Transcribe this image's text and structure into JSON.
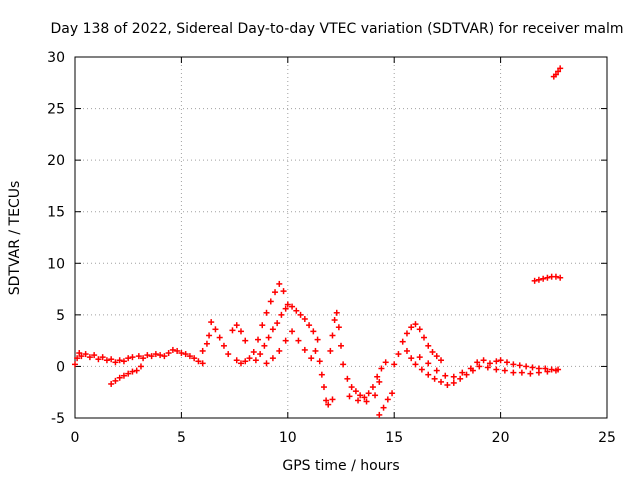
{
  "chart_data": {
    "type": "scatter",
    "title": "Day 138 of 2022, Sidereal Day-to-day VTEC variation (SDTVAR) for receiver malm",
    "xlabel": "GPS time / hours",
    "ylabel": "SDTVAR / TECUs",
    "xlim": [
      0,
      25
    ],
    "ylim": [
      -5,
      30
    ],
    "xticks": [
      "0",
      "5",
      "10",
      "15",
      "20",
      "25"
    ],
    "yticks": [
      "-5",
      "0",
      "5",
      "10",
      "15",
      "20",
      "25",
      "30"
    ],
    "grid": true,
    "marker": "+",
    "series": [
      {
        "name": "SDTVAR",
        "color": "#ff0000",
        "points": [
          [
            0.0,
            0.2
          ],
          [
            0.1,
            0.8
          ],
          [
            0.2,
            1.3
          ],
          [
            0.3,
            1.0
          ],
          [
            0.5,
            1.2
          ],
          [
            0.7,
            0.9
          ],
          [
            0.9,
            1.1
          ],
          [
            1.1,
            0.7
          ],
          [
            1.3,
            0.9
          ],
          [
            1.5,
            0.6
          ],
          [
            1.7,
            0.7
          ],
          [
            1.9,
            0.4
          ],
          [
            2.1,
            0.6
          ],
          [
            2.3,
            0.5
          ],
          [
            2.5,
            0.8
          ],
          [
            2.7,
            0.9
          ],
          [
            1.7,
            -1.7
          ],
          [
            1.9,
            -1.4
          ],
          [
            2.1,
            -1.1
          ],
          [
            2.3,
            -0.9
          ],
          [
            2.5,
            -0.7
          ],
          [
            2.7,
            -0.5
          ],
          [
            2.9,
            -0.4
          ],
          [
            3.1,
            0.0
          ],
          [
            3.0,
            1.0
          ],
          [
            3.2,
            0.8
          ],
          [
            3.4,
            1.1
          ],
          [
            3.6,
            1.0
          ],
          [
            3.8,
            1.2
          ],
          [
            4.0,
            1.1
          ],
          [
            4.2,
            1.0
          ],
          [
            4.4,
            1.3
          ],
          [
            4.6,
            1.6
          ],
          [
            4.8,
            1.5
          ],
          [
            5.0,
            1.3
          ],
          [
            5.2,
            1.2
          ],
          [
            5.4,
            1.0
          ],
          [
            5.6,
            0.8
          ],
          [
            5.8,
            0.5
          ],
          [
            6.0,
            0.3
          ],
          [
            6.0,
            1.5
          ],
          [
            6.2,
            2.2
          ],
          [
            6.3,
            3.0
          ],
          [
            6.4,
            4.3
          ],
          [
            6.6,
            3.6
          ],
          [
            6.8,
            2.8
          ],
          [
            7.0,
            2.0
          ],
          [
            7.2,
            1.2
          ],
          [
            7.4,
            3.5
          ],
          [
            7.6,
            4.0
          ],
          [
            7.8,
            3.4
          ],
          [
            8.0,
            2.5
          ],
          [
            7.6,
            0.6
          ],
          [
            7.8,
            0.3
          ],
          [
            8.0,
            0.5
          ],
          [
            8.2,
            0.8
          ],
          [
            8.4,
            1.4
          ],
          [
            8.6,
            2.6
          ],
          [
            8.8,
            4.0
          ],
          [
            9.0,
            5.2
          ],
          [
            9.2,
            6.3
          ],
          [
            9.4,
            7.2
          ],
          [
            9.6,
            8.0
          ],
          [
            9.8,
            7.3
          ],
          [
            8.5,
            0.6
          ],
          [
            8.7,
            1.2
          ],
          [
            8.9,
            2.0
          ],
          [
            9.1,
            2.8
          ],
          [
            9.3,
            3.6
          ],
          [
            9.5,
            4.2
          ],
          [
            9.7,
            5.0
          ],
          [
            9.9,
            5.6
          ],
          [
            10.0,
            6.0
          ],
          [
            10.2,
            5.8
          ],
          [
            10.4,
            5.4
          ],
          [
            10.6,
            5.0
          ],
          [
            10.8,
            4.6
          ],
          [
            11.0,
            4.0
          ],
          [
            11.2,
            3.4
          ],
          [
            11.4,
            2.6
          ],
          [
            9.0,
            0.3
          ],
          [
            9.3,
            0.8
          ],
          [
            9.6,
            1.5
          ],
          [
            9.9,
            2.5
          ],
          [
            10.2,
            3.4
          ],
          [
            10.5,
            2.5
          ],
          [
            10.8,
            1.6
          ],
          [
            11.1,
            0.8
          ],
          [
            11.3,
            1.5
          ],
          [
            11.5,
            0.5
          ],
          [
            11.6,
            -0.8
          ],
          [
            11.7,
            -2.0
          ],
          [
            11.8,
            -3.3
          ],
          [
            11.9,
            -3.7
          ],
          [
            12.1,
            -3.2
          ],
          [
            12.0,
            1.5
          ],
          [
            12.1,
            3.0
          ],
          [
            12.2,
            4.5
          ],
          [
            12.3,
            5.2
          ],
          [
            12.4,
            3.8
          ],
          [
            12.5,
            2.0
          ],
          [
            12.6,
            0.2
          ],
          [
            12.8,
            -1.2
          ],
          [
            13.0,
            -2.0
          ],
          [
            13.2,
            -2.4
          ],
          [
            13.4,
            -2.8
          ],
          [
            13.6,
            -3.0
          ],
          [
            13.8,
            -2.6
          ],
          [
            14.0,
            -2.0
          ],
          [
            14.2,
            -1.0
          ],
          [
            14.4,
            -0.2
          ],
          [
            14.6,
            0.4
          ],
          [
            12.9,
            -2.9
          ],
          [
            13.3,
            -3.3
          ],
          [
            13.7,
            -3.4
          ],
          [
            14.1,
            -2.8
          ],
          [
            14.3,
            -1.5
          ],
          [
            14.3,
            -4.7
          ],
          [
            14.5,
            -4.0
          ],
          [
            14.7,
            -3.2
          ],
          [
            14.9,
            -2.6
          ],
          [
            15.0,
            0.2
          ],
          [
            15.2,
            1.2
          ],
          [
            15.4,
            2.4
          ],
          [
            15.6,
            3.2
          ],
          [
            15.8,
            3.8
          ],
          [
            16.0,
            4.1
          ],
          [
            16.2,
            3.6
          ],
          [
            16.4,
            2.8
          ],
          [
            16.6,
            2.0
          ],
          [
            16.8,
            1.4
          ],
          [
            17.0,
            1.0
          ],
          [
            17.2,
            0.6
          ],
          [
            15.6,
            1.5
          ],
          [
            15.8,
            0.8
          ],
          [
            16.0,
            0.2
          ],
          [
            16.3,
            -0.3
          ],
          [
            16.6,
            -0.8
          ],
          [
            16.9,
            -1.2
          ],
          [
            17.2,
            -1.5
          ],
          [
            17.5,
            -1.8
          ],
          [
            17.8,
            -1.6
          ],
          [
            18.1,
            -1.2
          ],
          [
            18.4,
            -0.8
          ],
          [
            18.7,
            -0.4
          ],
          [
            19.0,
            0.0
          ],
          [
            16.2,
            0.9
          ],
          [
            16.6,
            0.3
          ],
          [
            17.0,
            -0.4
          ],
          [
            17.4,
            -0.9
          ],
          [
            17.8,
            -1.0
          ],
          [
            18.2,
            -0.6
          ],
          [
            18.6,
            -0.2
          ],
          [
            18.9,
            0.4
          ],
          [
            19.2,
            0.6
          ],
          [
            19.5,
            0.3
          ],
          [
            19.8,
            0.5
          ],
          [
            20.0,
            0.6
          ],
          [
            20.3,
            0.4
          ],
          [
            20.6,
            0.2
          ],
          [
            20.9,
            0.1
          ],
          [
            21.2,
            0.0
          ],
          [
            21.5,
            -0.1
          ],
          [
            21.8,
            -0.2
          ],
          [
            22.1,
            -0.2
          ],
          [
            22.4,
            -0.3
          ],
          [
            22.7,
            -0.3
          ],
          [
            19.4,
            -0.1
          ],
          [
            19.8,
            -0.3
          ],
          [
            20.2,
            -0.4
          ],
          [
            20.6,
            -0.6
          ],
          [
            21.0,
            -0.6
          ],
          [
            21.4,
            -0.7
          ],
          [
            21.8,
            -0.6
          ],
          [
            22.2,
            -0.5
          ],
          [
            22.6,
            -0.4
          ],
          [
            21.6,
            8.3
          ],
          [
            21.8,
            8.4
          ],
          [
            22.0,
            8.5
          ],
          [
            22.2,
            8.6
          ],
          [
            22.4,
            8.7
          ],
          [
            22.6,
            8.7
          ],
          [
            22.8,
            8.6
          ],
          [
            22.5,
            28.1
          ],
          [
            22.6,
            28.3
          ],
          [
            22.7,
            28.6
          ],
          [
            22.8,
            28.9
          ]
        ]
      }
    ]
  }
}
